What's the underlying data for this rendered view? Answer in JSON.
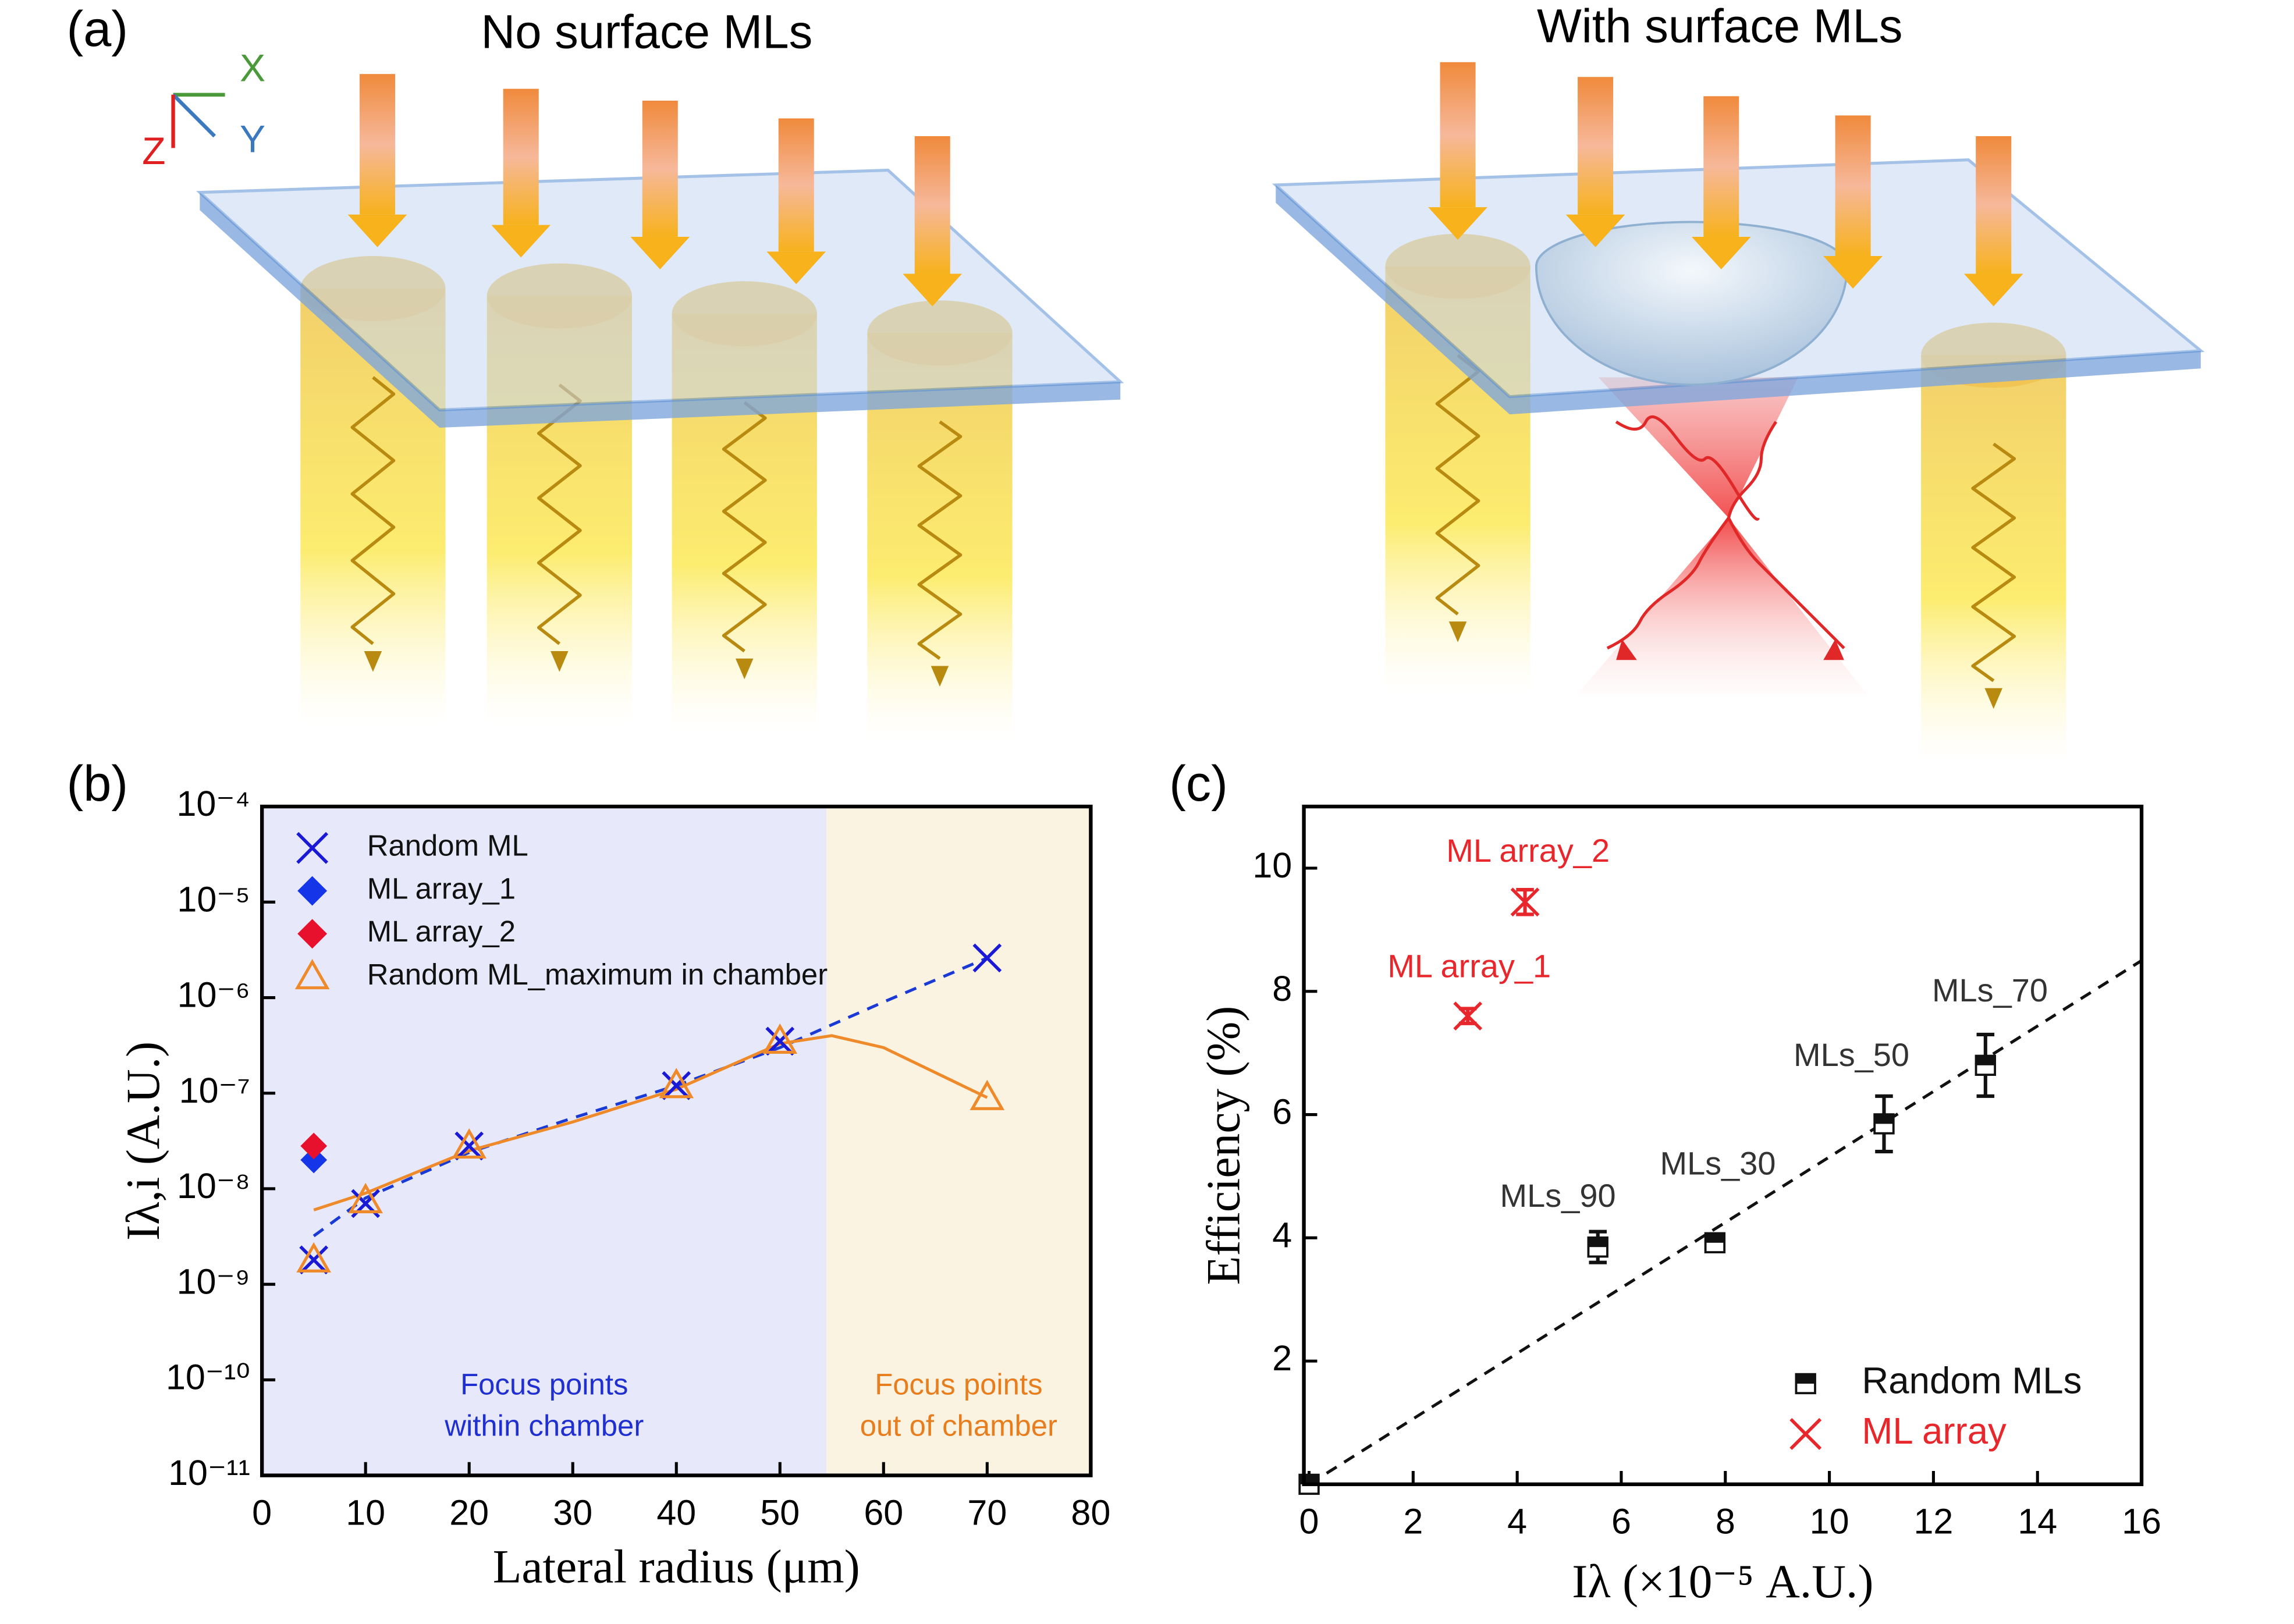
{
  "panel_a": {
    "label": "(a)",
    "left_title": "No surface MLs",
    "right_title": "With surface MLs",
    "axes": {
      "x": "X",
      "y": "Y",
      "z": "Z"
    }
  },
  "chart_data": [
    {
      "type": "scatter",
      "panel_label": "(b)",
      "xlabel": "Lateral radius (μm)",
      "ylabel": "Iλ,i (A.U.)",
      "xlim": [
        0,
        80
      ],
      "xticks": [
        0,
        10,
        20,
        30,
        40,
        50,
        60,
        70,
        80
      ],
      "ylim": [
        1e-11,
        0.0001
      ],
      "log_y": true,
      "yticks": [
        {
          "value": 1e-11,
          "label": "10⁻¹¹"
        },
        {
          "value": 1e-10,
          "label": "10⁻¹⁰"
        },
        {
          "value": 1e-09,
          "label": "10⁻⁹"
        },
        {
          "value": 1e-08,
          "label": "10⁻⁸"
        },
        {
          "value": 1e-07,
          "label": "10⁻⁷"
        },
        {
          "value": 1e-06,
          "label": "10⁻⁶"
        },
        {
          "value": 1e-05,
          "label": "10⁻⁵"
        },
        {
          "value": 0.0001,
          "label": "10⁻⁴"
        }
      ],
      "legend": "upper left",
      "regions": [
        {
          "x": [
            0,
            54.5
          ],
          "color": "#e7e9fb",
          "label": [
            "Focus points",
            "within chamber"
          ],
          "label_color": "#1f2fd0"
        },
        {
          "x": [
            54.5,
            80
          ],
          "color": "#fbf3e2",
          "label": [
            "Focus points",
            "out of chamber"
          ],
          "label_color": "#e87d1e"
        }
      ],
      "fit_lines": [
        {
          "color": "#1a3ad6",
          "dash": true,
          "x": [
            5,
            10,
            20,
            30,
            40,
            50,
            60,
            70
          ],
          "values": [
            3.2e-09,
            8e-09,
            2.4e-08,
            5.5e-08,
            1.2e-07,
            3e-07,
            9e-07,
            2.6e-06
          ]
        },
        {
          "color": "#ee8a2a",
          "dash": false,
          "x": [
            5,
            10,
            20,
            30,
            40,
            50,
            55,
            60,
            70
          ],
          "values": [
            6e-09,
            9e-09,
            2.5e-08,
            5e-08,
            1.1e-07,
            3.3e-07,
            4e-07,
            3e-07,
            9e-08
          ]
        }
      ],
      "series": [
        {
          "name": "Random ML",
          "color": "#1a1ad6",
          "marker": "x",
          "x": [
            5,
            10,
            20,
            40,
            50,
            70
          ],
          "values": [
            1.8e-09,
            7e-09,
            2.8e-08,
            1.2e-07,
            3.5e-07,
            2.6e-06
          ]
        },
        {
          "name": "ML array_1",
          "color": "#1436e8",
          "marker": "diamond",
          "x": [
            5
          ],
          "values": [
            2e-08
          ]
        },
        {
          "name": "ML array_2",
          "color": "#e8112d",
          "marker": "diamond",
          "x": [
            5
          ],
          "values": [
            2.8e-08
          ]
        },
        {
          "name": "Random ML_maximum in chamber",
          "color": "#ee8a2a",
          "marker": "triangle",
          "x": [
            5,
            10,
            20,
            40,
            50,
            70
          ],
          "values": [
            1.8e-09,
            7.5e-09,
            2.8e-08,
            1.2e-07,
            3.5e-07,
            9e-08
          ]
        }
      ]
    },
    {
      "type": "scatter",
      "panel_label": "(c)",
      "xlabel": "Iλ (×10⁻⁵ A.U.)",
      "ylabel": "Efficiency (%)",
      "xlim": [
        -0.1,
        16
      ],
      "xticks": [
        0,
        2,
        4,
        6,
        8,
        10,
        12,
        14,
        16
      ],
      "ylim": [
        0,
        11
      ],
      "yticks": [
        2,
        4,
        6,
        8,
        10
      ],
      "log_y": false,
      "legend": "lower right",
      "fit_lines": [
        {
          "color": "#111111",
          "dash": true,
          "x": [
            0,
            16
          ],
          "values": [
            0,
            8.5
          ]
        }
      ],
      "series": [
        {
          "name": "Random MLs",
          "color": "#111111",
          "label_color": "#333333",
          "marker": "half-square",
          "x": [
            0,
            5.55,
            7.8,
            11.05,
            13
          ],
          "values": [
            0,
            3.85,
            3.92,
            5.85,
            6.8
          ],
          "errors": [
            0,
            0.25,
            0.1,
            0.45,
            0.5
          ],
          "point_labels": [
            null,
            "MLs_90",
            "MLs_30",
            "MLs_50",
            "MLs_70"
          ]
        },
        {
          "name": "ML array",
          "color": "#e8272d",
          "label_color": "#e8272d",
          "marker": "x",
          "x": [
            3.05,
            4.15
          ],
          "values": [
            7.6,
            9.45
          ],
          "errors": [
            0.12,
            0.2
          ],
          "point_labels": [
            "ML array_1",
            "ML array_2"
          ]
        }
      ]
    }
  ]
}
